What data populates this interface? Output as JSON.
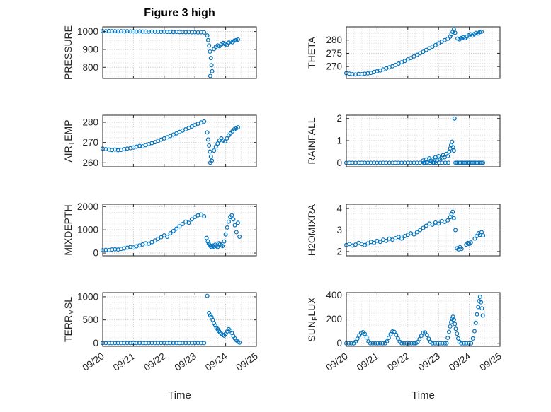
{
  "title": "Figure 3 high",
  "xlabel": "Time",
  "chart_data": {
    "type": "scatter",
    "marker": "open-circle",
    "marker_color": "#0072BD",
    "axis_color": "#262626",
    "grid_minor_color": "#dedede",
    "grid_major_color": "#c3c3c3",
    "grid_style": "dotted",
    "xaxis": {
      "lim": [
        0,
        5
      ],
      "ticks": [
        0,
        1,
        2,
        3,
        4,
        5
      ],
      "labels": [
        "09/20",
        "09/21",
        "09/22",
        "09/23",
        "09/24",
        "09/25"
      ],
      "minor_step": 0.25
    },
    "charts": [
      {
        "id": "pressure",
        "row": 0,
        "col": 0,
        "ylabel": {
          "pre": "PRESSURE",
          "sub": "",
          "post": ""
        },
        "ylim": [
          738,
          1026
        ],
        "yticks": [
          800,
          900,
          1000
        ],
        "ytick_labels": [
          "800",
          "900",
          "1000"
        ],
        "x": [
          0,
          0.1,
          0.2,
          0.3,
          0.4,
          0.5,
          0.6,
          0.7,
          0.8,
          0.9,
          1,
          1.1,
          1.2,
          1.3,
          1.4,
          1.5,
          1.6,
          1.7,
          1.8,
          1.9,
          2,
          2.1,
          2.2,
          2.3,
          2.4,
          2.5,
          2.6,
          2.7,
          2.8,
          2.9,
          3,
          3.1,
          3.2,
          3.3,
          3.4,
          3.43,
          3.46,
          3.49,
          3.52,
          3.54,
          3.56,
          3.5,
          3.62,
          3.68,
          3.74,
          3.8,
          3.86,
          3.92,
          3.98,
          4.04,
          4.1,
          4.16,
          4.22,
          4.28,
          4.34,
          4.4
        ],
        "y": [
          1002,
          1002,
          1003,
          1002,
          1002,
          1001,
          1002,
          1001,
          1002,
          1001,
          1001,
          1000,
          1001,
          1000,
          1000,
          999,
          1000,
          999,
          999,
          998,
          999,
          998,
          998,
          997,
          998,
          997,
          997,
          996,
          997,
          996,
          996,
          995,
          996,
          995,
          978,
          952,
          922,
          888,
          852,
          812,
          778,
          752,
          902,
          915,
          922,
          918,
          928,
          936,
          930,
          925,
          938,
          944,
          940,
          948,
          952,
          955
        ]
      },
      {
        "id": "theta",
        "row": 0,
        "col": 1,
        "ylabel": {
          "pre": "THETA",
          "sub": "",
          "post": ""
        },
        "ylim": [
          265.5,
          285
        ],
        "yticks": [
          270,
          275,
          280
        ],
        "ytick_labels": [
          "270",
          "275",
          "280"
        ],
        "x": [
          0,
          0.1,
          0.2,
          0.3,
          0.4,
          0.5,
          0.6,
          0.7,
          0.8,
          0.9,
          1,
          1.1,
          1.2,
          1.3,
          1.4,
          1.5,
          1.6,
          1.7,
          1.8,
          1.9,
          2,
          2.1,
          2.2,
          2.3,
          2.4,
          2.5,
          2.6,
          2.7,
          2.8,
          2.9,
          3,
          3.1,
          3.2,
          3.3,
          3.38,
          3.42,
          3.46,
          3.5,
          3.54,
          3.62,
          3.68,
          3.74,
          3.8,
          3.86,
          3.92,
          3.98,
          4.04,
          4.1,
          4.16,
          4.22,
          4.28,
          4.34,
          4.4
        ],
        "y": [
          267.5,
          267.3,
          267.1,
          267,
          267.2,
          267.1,
          267.3,
          267.4,
          267.6,
          267.9,
          268.2,
          268.5,
          268.9,
          269.3,
          269.7,
          270.1,
          270.6,
          271.1,
          271.6,
          272.1,
          272.7,
          273.2,
          273.8,
          274.4,
          275,
          275.6,
          276.3,
          276.9,
          277.5,
          278.1,
          278.8,
          279.4,
          280,
          280.5,
          281.3,
          282.2,
          283.1,
          284,
          282.8,
          280.6,
          280.3,
          280.8,
          281.1,
          280.7,
          281.3,
          281.8,
          282.2,
          281.7,
          282.3,
          282.7,
          282.5,
          283,
          283.2
        ]
      },
      {
        "id": "air-temp",
        "row": 1,
        "col": 0,
        "ylabel": {
          "pre": "AIR",
          "sub": "T",
          "post": "EMP"
        },
        "ylim": [
          258,
          283.5
        ],
        "yticks": [
          260,
          270,
          280
        ],
        "ytick_labels": [
          "260",
          "270",
          "280"
        ],
        "x": [
          0,
          0.1,
          0.2,
          0.3,
          0.4,
          0.5,
          0.6,
          0.7,
          0.8,
          0.9,
          1,
          1.1,
          1.2,
          1.3,
          1.4,
          1.5,
          1.6,
          1.7,
          1.8,
          1.9,
          2,
          2.1,
          2.2,
          2.3,
          2.4,
          2.5,
          2.6,
          2.7,
          2.8,
          2.9,
          3,
          3.1,
          3.2,
          3.3,
          3.4,
          3.43,
          3.46,
          3.49,
          3.52,
          3.55,
          3.5,
          3.62,
          3.68,
          3.74,
          3.8,
          3.86,
          3.92,
          3.98,
          4.04,
          4.1,
          4.16,
          4.22,
          4.28,
          4.34,
          4.4
        ],
        "y": [
          267,
          266.7,
          266.5,
          266.3,
          266.5,
          266.2,
          266.4,
          266.7,
          267,
          267.2,
          267.5,
          267.9,
          268.3,
          268.1,
          268.7,
          269.2,
          269.7,
          270.2,
          270.8,
          271.4,
          272,
          272.6,
          273.2,
          273.9,
          274.5,
          275.2,
          275.9,
          276.5,
          277.2,
          277.9,
          278.6,
          279.3,
          279.9,
          280.4,
          275,
          271.5,
          268.5,
          265.5,
          263,
          261,
          260,
          266,
          268,
          269.5,
          271,
          272,
          271,
          270.5,
          272,
          273.5,
          274.5,
          275.5,
          276.5,
          277,
          277.5
        ]
      },
      {
        "id": "rainfall",
        "row": 1,
        "col": 1,
        "ylabel": {
          "pre": "RAINFALL",
          "sub": "",
          "post": ""
        },
        "ylim": [
          -0.18,
          2.15
        ],
        "yticks": [
          0,
          1,
          2
        ],
        "ytick_labels": [
          "0",
          "1",
          "2"
        ],
        "x": [
          0,
          0.1,
          0.2,
          0.3,
          0.4,
          0.5,
          0.6,
          0.7,
          0.8,
          0.9,
          1,
          1.1,
          1.2,
          1.3,
          1.4,
          1.5,
          1.6,
          1.7,
          1.8,
          1.9,
          2,
          2.1,
          2.2,
          2.3,
          2.4,
          2.5,
          2.55,
          2.6,
          2.65,
          2.7,
          2.75,
          2.8,
          2.85,
          2.9,
          2.95,
          3,
          3.05,
          3.1,
          3.15,
          3.2,
          3.25,
          3.3,
          2.52,
          2.62,
          2.72,
          2.82,
          2.92,
          3.02,
          3.12,
          3.22,
          3.32,
          3.35,
          3.38,
          3.41,
          3.44,
          3.47,
          3.5,
          3.52,
          3.55,
          3.6,
          3.65,
          3.7,
          3.75,
          3.8,
          3.85,
          3.9,
          3.95,
          4,
          4.05,
          4.1,
          4.15,
          4.2,
          4.25,
          4.3,
          4.35,
          4.4,
          4.45
        ],
        "y": [
          0,
          0,
          0,
          0,
          0,
          0,
          0,
          0,
          0,
          0,
          0,
          0,
          0,
          0,
          0,
          0,
          0,
          0,
          0,
          0,
          0,
          0,
          0,
          0,
          0,
          0.1,
          0,
          0.15,
          0.05,
          0.2,
          0.1,
          0.15,
          0,
          0.25,
          0.1,
          0.3,
          0.15,
          0.2,
          0.35,
          0.25,
          0.4,
          0.3,
          0,
          0,
          0,
          0,
          0,
          0,
          0,
          0,
          0,
          0.5,
          0.65,
          0.8,
          0.95,
          0.7,
          0.55,
          2,
          0,
          0,
          0,
          0,
          0,
          0,
          0,
          0,
          0,
          0,
          0,
          0,
          0,
          0,
          0,
          0,
          0,
          0,
          0
        ]
      },
      {
        "id": "mixdepth",
        "row": 2,
        "col": 0,
        "ylabel": {
          "pre": "MIXDEPTH",
          "sub": "",
          "post": ""
        },
        "ylim": [
          -120,
          2100
        ],
        "yticks": [
          0,
          1000,
          2000
        ],
        "ytick_labels": [
          "0",
          "1000",
          "2000"
        ],
        "x": [
          0,
          0.1,
          0.2,
          0.3,
          0.4,
          0.5,
          0.6,
          0.7,
          0.8,
          0.9,
          1,
          1.1,
          1.2,
          1.3,
          1.4,
          1.5,
          1.6,
          1.7,
          1.8,
          1.9,
          2,
          2.1,
          2.2,
          2.3,
          2.4,
          2.5,
          2.6,
          2.7,
          2.8,
          2.9,
          3,
          3.1,
          3.2,
          3.3,
          3.38,
          3.42,
          3.45,
          3.48,
          3.52,
          3.55,
          3.58,
          3.62,
          3.66,
          3.7,
          3.74,
          3.78,
          3.82,
          3.86,
          3.9,
          3.95,
          4,
          4.05,
          4.1,
          4.15,
          4.2,
          4.25,
          4.3,
          4.35,
          4.4,
          4.45
        ],
        "y": [
          120,
          135,
          125,
          150,
          160,
          150,
          180,
          200,
          230,
          260,
          240,
          290,
          330,
          370,
          420,
          400,
          470,
          540,
          610,
          680,
          760,
          700,
          850,
          950,
          1050,
          1150,
          1250,
          1350,
          1300,
          1450,
          1550,
          1620,
          1660,
          1580,
          650,
          500,
          400,
          330,
          280,
          240,
          320,
          280,
          360,
          300,
          260,
          420,
          380,
          330,
          300,
          500,
          800,
          1100,
          1350,
          1550,
          1620,
          1450,
          1200,
          900,
          1300,
          700
        ]
      },
      {
        "id": "h2omixra",
        "row": 2,
        "col": 1,
        "ylabel": {
          "pre": "H2OMIXRA",
          "sub": "",
          "post": ""
        },
        "ylim": [
          1.8,
          4.2
        ],
        "yticks": [
          2,
          3,
          4
        ],
        "ytick_labels": [
          "2",
          "3",
          "4"
        ],
        "x": [
          0,
          0.1,
          0.2,
          0.3,
          0.4,
          0.5,
          0.6,
          0.7,
          0.8,
          0.9,
          1,
          1.1,
          1.2,
          1.3,
          1.4,
          1.5,
          1.6,
          1.7,
          1.8,
          1.9,
          2,
          2.1,
          2.2,
          2.3,
          2.4,
          2.5,
          2.6,
          2.7,
          2.8,
          2.9,
          3,
          3.1,
          3.2,
          3.3,
          3.38,
          3.42,
          3.46,
          3.5,
          3.55,
          3.6,
          3.65,
          3.7,
          3.75,
          3.9,
          3.95,
          4,
          4.05,
          4.18,
          4.24,
          4.3,
          4.35,
          4.4,
          4.45
        ],
        "y": [
          2.3,
          2.35,
          2.28,
          2.32,
          2.4,
          2.35,
          2.3,
          2.38,
          2.45,
          2.4,
          2.5,
          2.45,
          2.55,
          2.5,
          2.6,
          2.55,
          2.62,
          2.68,
          2.6,
          2.72,
          2.78,
          2.85,
          2.8,
          2.9,
          3,
          3.1,
          3.2,
          3.3,
          3.25,
          3.35,
          3.3,
          3.42,
          3.38,
          3.45,
          3.6,
          3.75,
          3.85,
          3.55,
          3,
          2.15,
          2.1,
          2.2,
          2.12,
          2.32,
          2.4,
          2.35,
          2.42,
          2.6,
          2.72,
          2.85,
          2.78,
          2.9,
          2.75
        ]
      },
      {
        "id": "terr-msl",
        "row": 3,
        "col": 0,
        "ylabel": {
          "pre": "TERR",
          "sub": "M",
          "post": "SL"
        },
        "ylim": [
          -70,
          1090
        ],
        "yticks": [
          0,
          500,
          1000
        ],
        "ytick_labels": [
          "0",
          "500",
          "1000"
        ],
        "x": [
          0,
          0.1,
          0.2,
          0.3,
          0.4,
          0.5,
          0.6,
          0.7,
          0.8,
          0.9,
          1,
          1.1,
          1.2,
          1.3,
          1.4,
          1.5,
          1.6,
          1.7,
          1.8,
          1.9,
          2,
          2.1,
          2.2,
          2.3,
          2.4,
          2.5,
          2.6,
          2.7,
          2.8,
          2.9,
          3,
          3.1,
          3.2,
          3.3,
          3.4,
          3.46,
          3.5,
          3.54,
          3.58,
          3.62,
          3.66,
          3.7,
          3.74,
          3.78,
          3.82,
          3.86,
          3.9,
          3.95,
          4,
          4.05,
          4.1,
          4.15,
          4.2,
          4.25,
          4.3,
          4.35,
          4.4,
          4.45
        ],
        "y": [
          0,
          0,
          0,
          0,
          0,
          0,
          0,
          0,
          0,
          0,
          0,
          0,
          0,
          0,
          0,
          0,
          0,
          0,
          0,
          0,
          0,
          0,
          0,
          0,
          0,
          0,
          0,
          0,
          0,
          0,
          0,
          0,
          0,
          0,
          1020,
          650,
          600,
          560,
          500,
          430,
          380,
          330,
          300,
          260,
          230,
          200,
          180,
          160,
          200,
          250,
          300,
          270,
          220,
          150,
          100,
          60,
          30,
          10
        ]
      },
      {
        "id": "sun-flux",
        "row": 3,
        "col": 1,
        "ylabel": {
          "pre": "SUN",
          "sub": "F",
          "post": "LUX"
        },
        "ylim": [
          -25,
          420
        ],
        "yticks": [
          0,
          200,
          400
        ],
        "ytick_labels": [
          "0",
          "200",
          "400"
        ],
        "x": [
          0,
          0.08,
          0.16,
          0.24,
          0.3,
          0.36,
          0.42,
          0.48,
          0.54,
          0.6,
          0.66,
          0.72,
          0.78,
          0.86,
          0.94,
          1.02,
          1.1,
          1.18,
          1.26,
          1.32,
          1.38,
          1.44,
          1.5,
          1.56,
          1.62,
          1.68,
          1.74,
          1.8,
          1.88,
          1.96,
          2.04,
          2.12,
          2.2,
          2.26,
          2.32,
          2.38,
          2.44,
          2.5,
          2.56,
          2.62,
          2.68,
          2.74,
          2.8,
          2.88,
          2.96,
          3.04,
          3.12,
          3.2,
          3.26,
          3.3,
          3.34,
          3.38,
          3.41,
          3.44,
          3.47,
          3.5,
          3.53,
          3.56,
          3.6,
          3.64,
          3.68,
          3.74,
          3.82,
          3.9,
          3.98,
          4.06,
          4.12,
          4.17,
          4.21,
          4.25,
          4.29,
          4.32,
          4.35,
          4.38,
          4.41,
          4.44
        ],
        "y": [
          0,
          0,
          0,
          0,
          12,
          38,
          65,
          85,
          92,
          78,
          48,
          15,
          0,
          0,
          0,
          0,
          0,
          0,
          0,
          15,
          45,
          75,
          98,
          95,
          70,
          40,
          12,
          0,
          0,
          0,
          0,
          0,
          0,
          0,
          10,
          35,
          62,
          88,
          90,
          68,
          38,
          10,
          0,
          0,
          0,
          0,
          0,
          0,
          0,
          45,
          95,
          140,
          175,
          205,
          220,
          195,
          160,
          120,
          80,
          40,
          12,
          0,
          0,
          0,
          0,
          0,
          40,
          100,
          170,
          240,
          300,
          350,
          385,
          340,
          290,
          230
        ]
      }
    ]
  }
}
